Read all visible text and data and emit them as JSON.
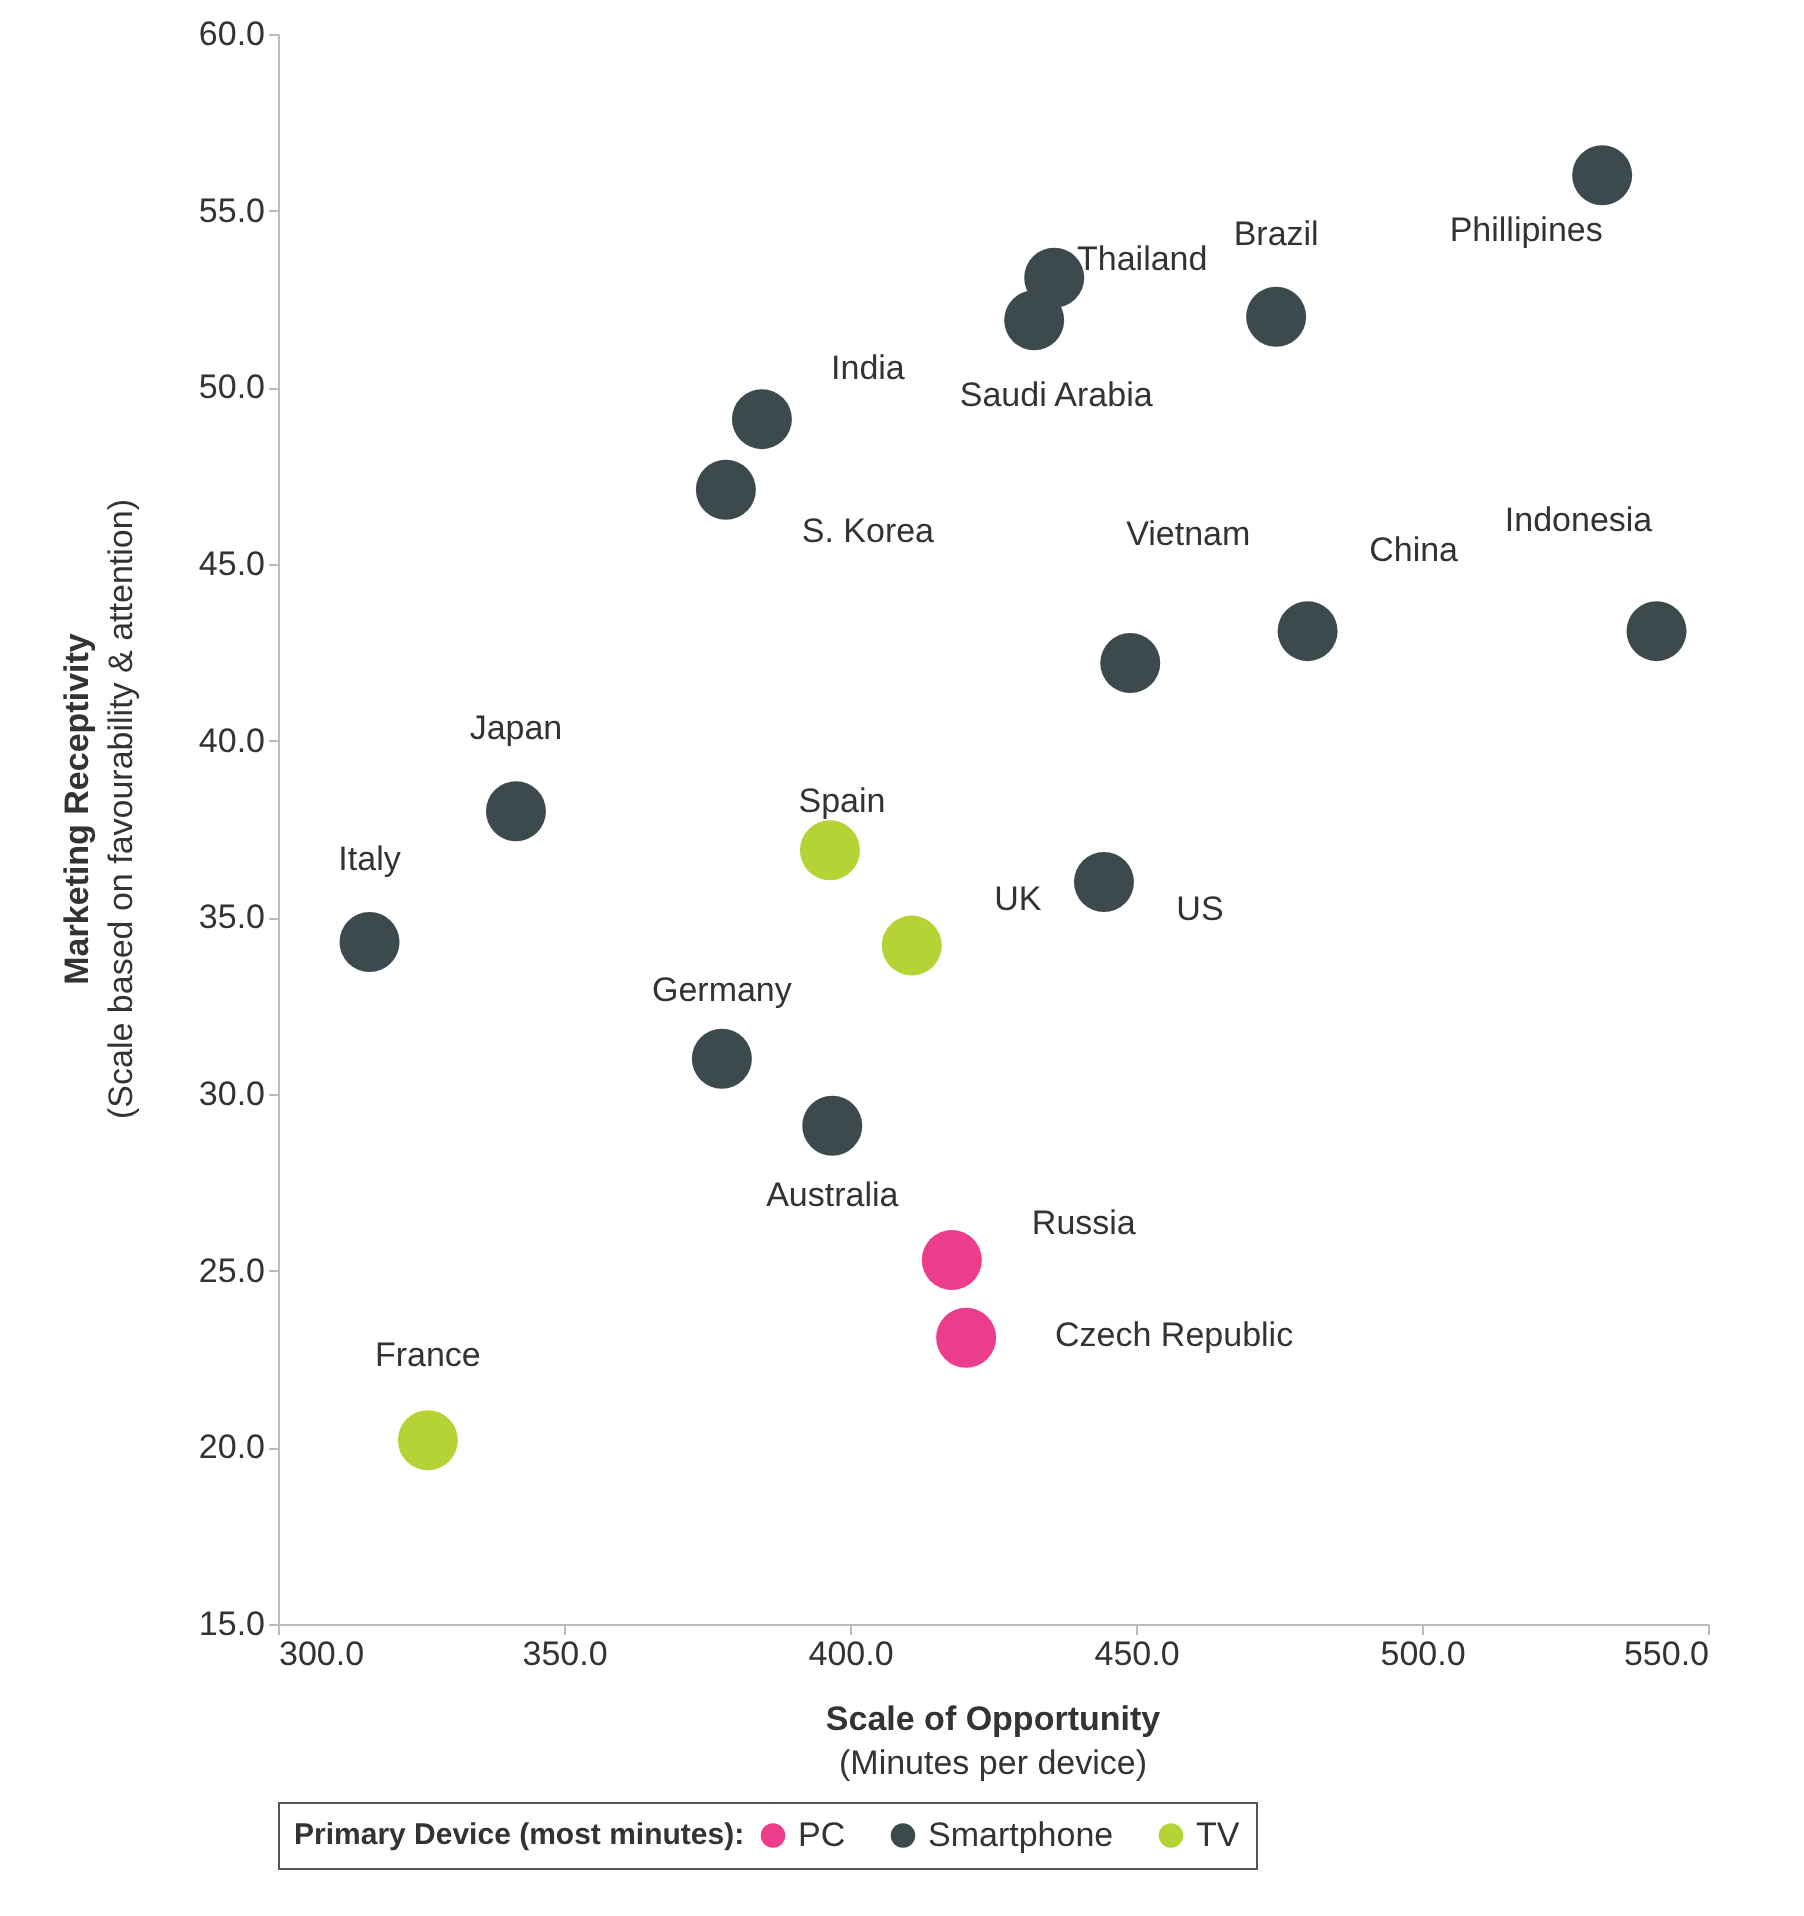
{
  "chart_data": {
    "type": "scatter",
    "xlabel": "Scale of Opportunity\n(Minutes per device)",
    "ylabel": "Marketing Receptivity\n(Scale based on favourability & attention)",
    "legend_title": "Primary Device (most minutes):",
    "legend": "bottom",
    "grid": false,
    "marker": "circle",
    "xlim": [
      300,
      550
    ],
    "ylim": [
      15,
      60
    ],
    "xticks": [
      {
        "value": 300,
        "label": "300.0"
      },
      {
        "value": 350,
        "label": "350.0"
      },
      {
        "value": 400,
        "label": "400.0"
      },
      {
        "value": 450,
        "label": "450.0"
      },
      {
        "value": 500,
        "label": "500.0"
      },
      {
        "value": 550,
        "label": "550.0"
      }
    ],
    "yticks": [
      {
        "value": 15,
        "label": "15.0"
      },
      {
        "value": 20,
        "label": "20.0"
      },
      {
        "value": 25,
        "label": "25.0"
      },
      {
        "value": 30,
        "label": "30.0"
      },
      {
        "value": 35,
        "label": "35.0"
      },
      {
        "value": 40,
        "label": "40.0"
      },
      {
        "value": 45,
        "label": "45.0"
      },
      {
        "value": 50,
        "label": "50.0"
      },
      {
        "value": 55,
        "label": "55.0"
      },
      {
        "value": 60,
        "label": "60.0"
      }
    ],
    "series": [
      {
        "name": "PC",
        "color": "#ec3c8c",
        "x": [
          417.8,
          420.3
        ],
        "values": [
          25.3,
          23.1
        ],
        "value_labels": [
          "Russia",
          "Czech Republic"
        ]
      },
      {
        "name": "Smartphone",
        "color": "#3d4a4d",
        "x": [
          531.5,
          435.7,
          432.2,
          474.5,
          384.6,
          378.3,
          449.0,
          480.0,
          541.0,
          341.6,
          444.4,
          316.0,
          377.6,
          396.9
        ],
        "values": [
          56.0,
          53.1,
          51.9,
          52.0,
          49.1,
          47.1,
          42.2,
          43.1,
          43.1,
          38.0,
          36.0,
          34.3,
          31.0,
          29.1
        ],
        "value_labels": [
          "Phillipines",
          "Thailand",
          "Saudi Arabia",
          "Brazil",
          "India",
          "S. Korea",
          "Vietnam",
          "China",
          "Indonesia",
          "Japan",
          "US",
          "Italy",
          "Germany",
          "Australia"
        ]
      },
      {
        "name": "TV",
        "color": "#b5d334",
        "x": [
          396.5,
          410.8,
          326.2
        ],
        "values": [
          36.9,
          34.2,
          20.2
        ],
        "value_labels": [
          "Spain",
          "UK",
          "France"
        ]
      }
    ]
  }
}
